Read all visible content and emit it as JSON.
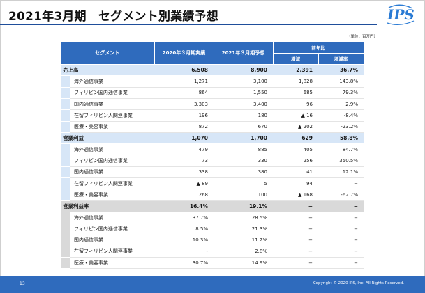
{
  "title": "2021年3月期　セグメント別業績予想",
  "logo_text": "IPS",
  "unit_note": "（単位：百万円）",
  "colors": {
    "accent": "#2f6bbd",
    "main_row": "#d7e6f7",
    "gray_row": "#d9d9d9"
  },
  "table": {
    "headers": {
      "segment": "セグメント",
      "actual": "2020年３月期実績",
      "forecast": "2021年３月期予想",
      "yoy_group": "前年比",
      "change": "増減",
      "change_rate": "増減率"
    },
    "sales": {
      "label": "売上高",
      "actual": "6,508",
      "forecast": "8,900",
      "change": "2,391",
      "rate": "36.7%",
      "rows": [
        {
          "label": "海外通信事業",
          "actual": "1,271",
          "forecast": "3,100",
          "change": "1,828",
          "rate": "143.8%"
        },
        {
          "label": "フィリピン国内通信事業",
          "actual": "864",
          "forecast": "1,550",
          "change": "685",
          "rate": "79.3%"
        },
        {
          "label": "国内通信事業",
          "actual": "3,303",
          "forecast": "3,400",
          "change": "96",
          "rate": "2.9%"
        },
        {
          "label": "在留フィリピン人関連事業",
          "actual": "196",
          "forecast": "180",
          "change": "▲ 16",
          "rate": "-8.4%"
        },
        {
          "label": "医療・美容事業",
          "actual": "872",
          "forecast": "670",
          "change": "▲ 202",
          "rate": "-23.2%"
        }
      ]
    },
    "profit": {
      "label": "営業利益",
      "actual": "1,070",
      "forecast": "1,700",
      "change": "629",
      "rate": "58.8%",
      "rows": [
        {
          "label": "海外通信事業",
          "actual": "479",
          "forecast": "885",
          "change": "405",
          "rate": "84.7%"
        },
        {
          "label": "フィリピン国内通信事業",
          "actual": "73",
          "forecast": "330",
          "change": "256",
          "rate": "350.5%"
        },
        {
          "label": "国内通信事業",
          "actual": "338",
          "forecast": "380",
          "change": "41",
          "rate": "12.1%"
        },
        {
          "label": "在留フィリピン人関連事業",
          "actual": "▲ 89",
          "forecast": "5",
          "change": "94",
          "rate": "−"
        },
        {
          "label": "医療・美容事業",
          "actual": "268",
          "forecast": "100",
          "change": "▲ 168",
          "rate": "-62.7%"
        }
      ]
    },
    "margin": {
      "label": "営業利益率",
      "actual": "16.4%",
      "forecast": "19.1%",
      "change": "−",
      "rate": "−",
      "rows": [
        {
          "label": "海外通信事業",
          "actual": "37.7%",
          "forecast": "28.5%",
          "change": "−",
          "rate": "−"
        },
        {
          "label": "フィリピン国内通信事業",
          "actual": "8.5%",
          "forecast": "21.3%",
          "change": "−",
          "rate": "−"
        },
        {
          "label": "国内通信事業",
          "actual": "10.3%",
          "forecast": "11.2%",
          "change": "−",
          "rate": "−"
        },
        {
          "label": "在留フィリピン人関連事業",
          "actual": "-",
          "forecast": "2.8%",
          "change": "−",
          "rate": "−"
        },
        {
          "label": "医療・美容事業",
          "actual": "30.7%",
          "forecast": "14.9%",
          "change": "−",
          "rate": "−"
        }
      ]
    }
  },
  "footer": {
    "page_number": "13",
    "copyright": "Copyright © 2020 IPS, Inc. All Rights Reserved."
  }
}
